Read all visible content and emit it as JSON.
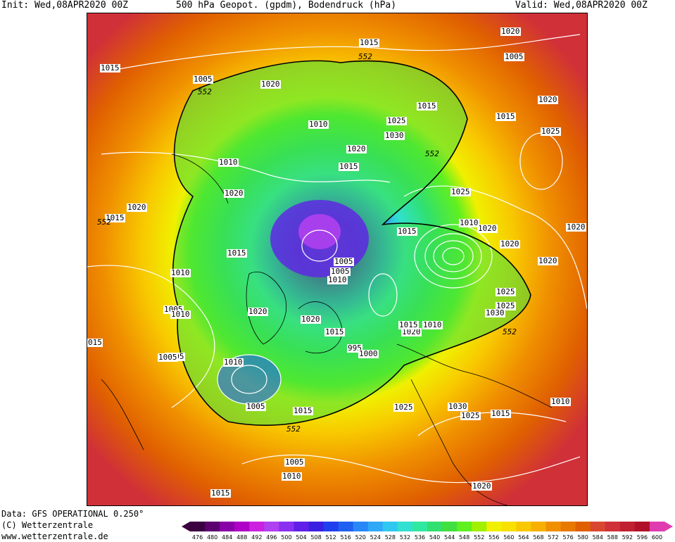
{
  "header": {
    "init": "Init: Wed,08APR2020 00Z",
    "title": "500 hPa Geopot. (gpdm), Bodendruck (hPa)",
    "valid": "Valid: Wed,08APR2020 00Z"
  },
  "footer": {
    "data": "Data: GFS OPERATIONAL 0.250°",
    "copyright": "(C) Wetterzentrale",
    "url": "www.wetterzentrale.de"
  },
  "colorbar": {
    "ticks": [
      "476",
      "480",
      "484",
      "488",
      "492",
      "496",
      "500",
      "504",
      "508",
      "512",
      "516",
      "520",
      "524",
      "528",
      "532",
      "536",
      "540",
      "544",
      "548",
      "552",
      "556",
      "560",
      "564",
      "568",
      "572",
      "576",
      "580",
      "584",
      "588",
      "592",
      "596",
      "600"
    ],
    "colors": [
      "#3a0040",
      "#5c0070",
      "#8a00a8",
      "#b000c8",
      "#cc20e0",
      "#b040f0",
      "#8a30f0",
      "#6020e8",
      "#3a20e0",
      "#2040f0",
      "#2060f0",
      "#2888f8",
      "#30a8f8",
      "#30c8f0",
      "#30e0d0",
      "#30e8a0",
      "#30e070",
      "#40e040",
      "#60f020",
      "#a0f000",
      "#f0f000",
      "#f8e000",
      "#f8c800",
      "#f8b000",
      "#f09000",
      "#e87800",
      "#e06000",
      "#d84830",
      "#d03038",
      "#c02030",
      "#b01028",
      "#e03cb0"
    ]
  },
  "map": {
    "isobar_labels": [
      {
        "text": "1015"
      },
      {
        "text": "1020"
      },
      {
        "text": "1005"
      },
      {
        "text": "1020"
      },
      {
        "text": "1005"
      },
      {
        "text": "1015"
      },
      {
        "text": "1015"
      },
      {
        "text": "1020"
      },
      {
        "text": "1010"
      },
      {
        "text": "1025"
      },
      {
        "text": "1030"
      },
      {
        "text": "1020"
      },
      {
        "text": "1015"
      },
      {
        "text": "1015"
      },
      {
        "text": "1025"
      },
      {
        "text": "1010"
      },
      {
        "text": "1015"
      },
      {
        "text": "1020"
      },
      {
        "text": "1020"
      },
      {
        "text": "1020"
      },
      {
        "text": "1025"
      },
      {
        "text": "1015"
      },
      {
        "text": "1020"
      },
      {
        "text": "1020"
      },
      {
        "text": "1025"
      },
      {
        "text": "1015"
      },
      {
        "text": "1010"
      },
      {
        "text": "1020"
      },
      {
        "text": "1010"
      },
      {
        "text": "1005"
      },
      {
        "text": "1005"
      },
      {
        "text": "1010"
      },
      {
        "text": "1005"
      },
      {
        "text": "1020"
      },
      {
        "text": "1015"
      },
      {
        "text": "1020"
      },
      {
        "text": "1015"
      },
      {
        "text": "1010"
      },
      {
        "text": "1020"
      },
      {
        "text": "995"
      },
      {
        "text": "1000"
      },
      {
        "text": "1025"
      },
      {
        "text": "1030"
      },
      {
        "text": "1005"
      },
      {
        "text": "1010"
      },
      {
        "text": "1005"
      },
      {
        "text": "1010"
      },
      {
        "text": "1005"
      },
      {
        "text": "1015"
      },
      {
        "text": "1025"
      },
      {
        "text": "1030"
      },
      {
        "text": "1025"
      },
      {
        "text": "1015"
      },
      {
        "text": "1010"
      },
      {
        "text": "1005"
      },
      {
        "text": "1010"
      },
      {
        "text": "1015"
      },
      {
        "text": "1020"
      },
      {
        "text": "015"
      },
      {
        "text": "1015"
      }
    ],
    "height_labels": [
      {
        "text": "552"
      },
      {
        "text": "552"
      },
      {
        "text": "552"
      },
      {
        "text": "552"
      },
      {
        "text": "552"
      },
      {
        "text": "552"
      }
    ]
  }
}
